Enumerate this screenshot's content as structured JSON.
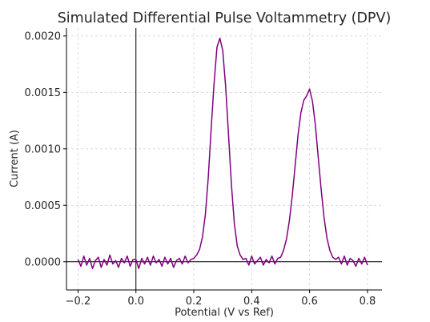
{
  "chart_data": {
    "type": "line",
    "title": "Simulated Differential Pulse Voltammetry (DPV)",
    "xlabel": "Potential (V vs Ref)",
    "ylabel": "Current (A)",
    "xlim": [
      -0.24,
      0.85
    ],
    "ylim": [
      -0.00025,
      0.00207
    ],
    "x_ticks": [
      -0.2,
      0.0,
      0.2,
      0.4,
      0.6,
      0.8
    ],
    "x_tick_labels": [
      "−0.2",
      "0.0",
      "0.2",
      "0.4",
      "0.6",
      "0.8"
    ],
    "y_ticks": [
      0.0,
      0.0005,
      0.001,
      0.0015,
      0.002
    ],
    "y_tick_labels": [
      "0.0000",
      "0.0005",
      "0.0010",
      "0.0015",
      "0.0020"
    ],
    "grid": true,
    "reference_lines": {
      "x": 0.0,
      "y": 0.0
    },
    "series": [
      {
        "color": "#800080",
        "x": [
          -0.2,
          -0.19,
          -0.18,
          -0.17,
          -0.16,
          -0.15,
          -0.14,
          -0.13,
          -0.12,
          -0.11,
          -0.1,
          -0.09,
          -0.08,
          -0.07,
          -0.06,
          -0.05,
          -0.04,
          -0.03,
          -0.02,
          -0.01,
          0.0,
          0.01,
          0.02,
          0.03,
          0.04,
          0.05,
          0.06,
          0.07,
          0.08,
          0.09,
          0.1,
          0.11,
          0.12,
          0.13,
          0.14,
          0.15,
          0.16,
          0.17,
          0.18,
          0.19,
          0.2,
          0.21,
          0.22,
          0.23,
          0.24,
          0.25,
          0.26,
          0.27,
          0.28,
          0.29,
          0.3,
          0.31,
          0.32,
          0.33,
          0.34,
          0.35,
          0.36,
          0.37,
          0.38,
          0.39,
          0.4,
          0.41,
          0.42,
          0.43,
          0.44,
          0.45,
          0.46,
          0.47,
          0.48,
          0.49,
          0.5,
          0.51,
          0.52,
          0.53,
          0.54,
          0.55,
          0.56,
          0.57,
          0.58,
          0.59,
          0.6,
          0.61,
          0.62,
          0.63,
          0.64,
          0.65,
          0.66,
          0.67,
          0.68,
          0.69,
          0.7,
          0.71,
          0.72,
          0.73,
          0.74,
          0.75,
          0.76,
          0.77,
          0.78,
          0.79,
          0.8
        ],
        "y": [
          2e-05,
          -4e-05,
          5e-05,
          -3e-05,
          3e-05,
          -6e-05,
          1e-05,
          4e-05,
          -5e-05,
          2e-05,
          -3e-05,
          6e-05,
          -2e-05,
          1e-05,
          -5e-05,
          3e-05,
          -1e-05,
          5e-05,
          -4e-05,
          2e-05,
          2e-05,
          -6e-05,
          3e-05,
          -2e-05,
          4e-05,
          -3e-05,
          5e-05,
          -1e-05,
          2e-05,
          -4e-05,
          4e-05,
          -2e-05,
          3e-05,
          -5e-05,
          1e-05,
          3e-05,
          -2e-05,
          5e-05,
          -1e-05,
          2e-05,
          3e-05,
          6e-05,
          0.00011,
          0.00022,
          0.00042,
          0.00075,
          0.00118,
          0.00158,
          0.0019,
          0.00198,
          0.00187,
          0.00155,
          0.00112,
          0.00068,
          0.00034,
          0.00014,
          6e-05,
          2e-05,
          3e-05,
          -3e-05,
          5e-05,
          -2e-05,
          1e-05,
          4e-05,
          -3e-05,
          2e-05,
          -1e-05,
          5e-05,
          -2e-05,
          3e-05,
          4e-05,
          0.0001,
          0.0002,
          0.00036,
          0.00058,
          0.00085,
          0.00112,
          0.00132,
          0.00143,
          0.00147,
          0.00153,
          0.00142,
          0.00121,
          0.00092,
          0.00064,
          0.00039,
          0.00021,
          0.0001,
          4e-05,
          2e-05,
          4e-05,
          -2e-05,
          5e-05,
          -3e-05,
          3e-05,
          1e-05,
          -4e-05,
          3e-05,
          -2e-05,
          4e-05,
          -3e-05
        ]
      }
    ]
  }
}
